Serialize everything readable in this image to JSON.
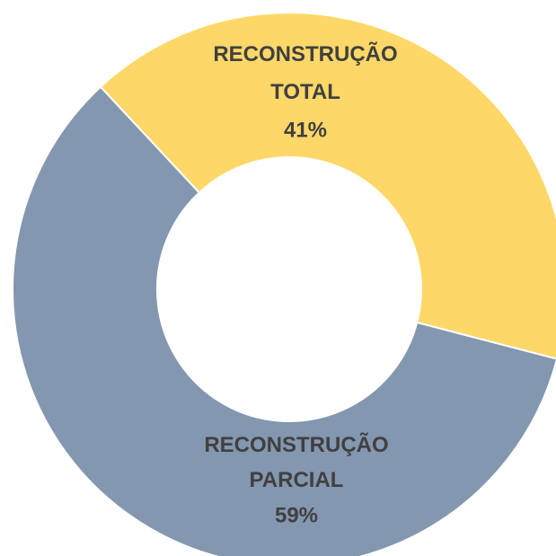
{
  "chart_data": {
    "type": "donut",
    "categories": [
      "RECONSTRUÇÃO TOTAL",
      "RECONSTRUÇÃO PARCIAL"
    ],
    "values": [
      41,
      59
    ],
    "value_labels": [
      "41%",
      "59%"
    ],
    "colors": [
      "#fdd868",
      "#8497b0"
    ]
  }
}
